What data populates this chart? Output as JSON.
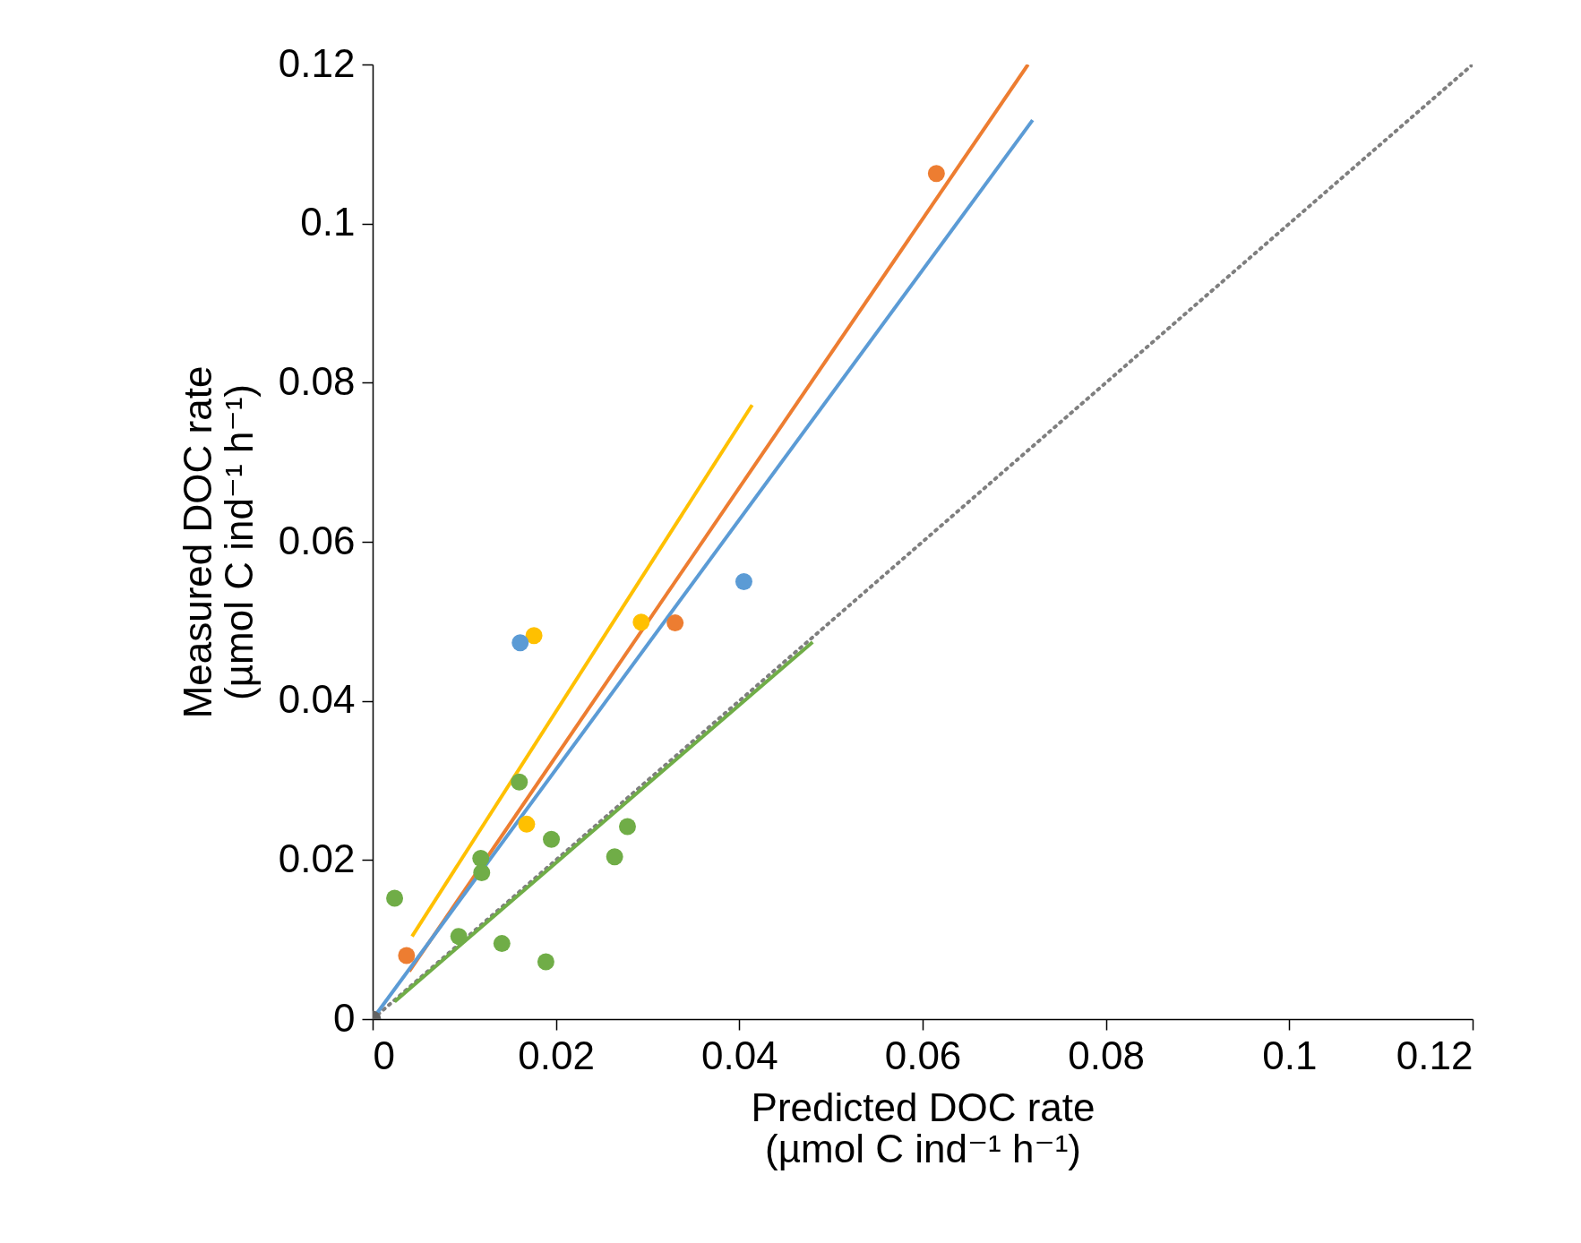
{
  "chart_data": {
    "type": "scatter",
    "xlabel": "Predicted DOC rate\n(µmol C ind⁻¹ h⁻¹)",
    "ylabel": "Measured DOC rate\n(µmol C ind⁻¹ h⁻¹)",
    "xlim": [
      0,
      0.12
    ],
    "ylim": [
      0,
      0.12
    ],
    "xticks": [
      0,
      0.02,
      0.04,
      0.06,
      0.08,
      0.1,
      0.12
    ],
    "yticks": [
      0,
      0.02,
      0.04,
      0.06,
      0.08,
      0.1,
      0.12
    ],
    "grid": false,
    "series": [
      {
        "type": "line",
        "color": "#7f7f7f",
        "line_style": "dotted",
        "x": [
          0,
          0.12
        ],
        "values": [
          0,
          0.12
        ]
      },
      {
        "type": "line",
        "color": "#ffc000",
        "x": [
          0.0043,
          0.0414
        ],
        "values": [
          0.0104,
          0.0772
        ]
      },
      {
        "type": "line",
        "color": "#ed7d31",
        "x": [
          0.004,
          0.0715
        ],
        "values": [
          0.006,
          0.12
        ]
      },
      {
        "type": "line",
        "color": "#5b9bd5",
        "x": [
          0,
          0.072
        ],
        "values": [
          0,
          0.113
        ]
      },
      {
        "type": "line",
        "color": "#70ad47",
        "x": [
          0.0024,
          0.048
        ],
        "values": [
          0.0022,
          0.0474
        ]
      },
      {
        "marker": "circle",
        "color": "#70ad47",
        "x": [
          0.0024,
          0.0094,
          0.0118,
          0.0119,
          0.0141,
          0.016,
          0.0189,
          0.0195,
          0.0264,
          0.0278
        ],
        "values": [
          0.0152,
          0.0104,
          0.0202,
          0.0184,
          0.0095,
          0.0298,
          0.0072,
          0.0226,
          0.0204,
          0.0242
        ]
      },
      {
        "marker": "circle",
        "color": "#ffc000",
        "x": [
          0.0176,
          0.0293,
          0.0168
        ],
        "values": [
          0.0482,
          0.0499,
          0.0245
        ]
      },
      {
        "marker": "circle",
        "color": "#ed7d31",
        "x": [
          0.0037,
          0.033,
          0.0615
        ],
        "values": [
          0.008,
          0.0498,
          0.1063
        ]
      },
      {
        "marker": "circle",
        "color": "#5b9bd5",
        "x": [
          0.0161,
          0.0405
        ],
        "values": [
          0.0473,
          0.055
        ]
      },
      {
        "marker": "circle",
        "color": "#636363",
        "x": [
          0
        ],
        "values": [
          0
        ]
      }
    ]
  }
}
